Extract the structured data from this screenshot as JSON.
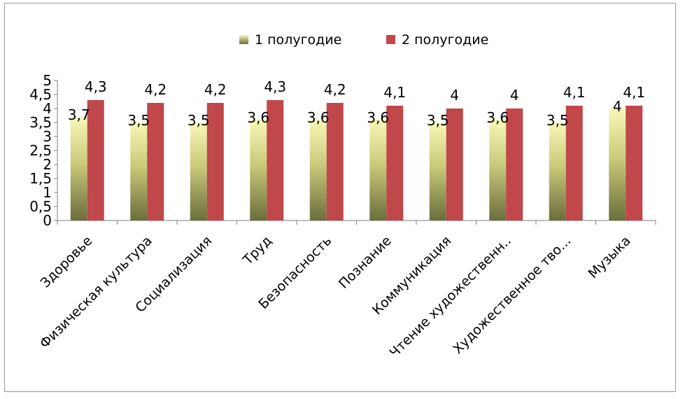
{
  "chart_data": {
    "type": "bar",
    "categories": [
      "Здоровье",
      "Физическая культура",
      "Социализация",
      "Труд",
      "Безопасность",
      "Познание",
      "Коммуникация",
      "Чтение художественн..",
      "Художественное тво...",
      "Музыка"
    ],
    "series": [
      {
        "name": "1 полугодие",
        "values": [
          3.7,
          3.5,
          3.5,
          3.6,
          3.6,
          3.6,
          3.5,
          3.6,
          3.5,
          4
        ],
        "labels": [
          "3,7",
          "3,5",
          "3,5",
          "3,6",
          "3,6",
          "3,6",
          "3,5",
          "3,6",
          "3,5",
          "4"
        ],
        "color": "#e8e870"
      },
      {
        "name": "2 полугодие",
        "values": [
          4.3,
          4.2,
          4.2,
          4.3,
          4.2,
          4.1,
          4,
          4,
          4.1,
          4.1
        ],
        "labels": [
          "4,3",
          "4,2",
          "4,2",
          "4,3",
          "4,2",
          "4,1",
          "4",
          "4",
          "4,1",
          "4,1"
        ],
        "color": "#c0474a"
      }
    ],
    "ylim": [
      0,
      5
    ],
    "yticks": [
      "0",
      "0,5",
      "1",
      "1,5",
      "2",
      "2,5",
      "3",
      "3,5",
      "4",
      "4,5",
      "5"
    ],
    "legend_position": "top",
    "grid": false
  }
}
